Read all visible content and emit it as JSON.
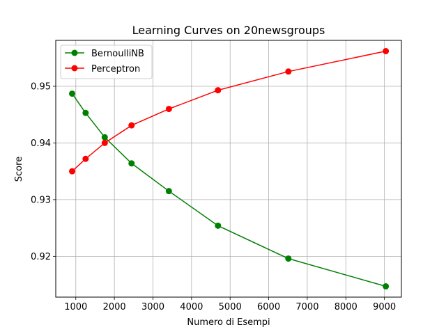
{
  "chart_data": {
    "type": "line",
    "title": "Learning Curves on 20newsgroups",
    "xlabel": "Numero di Esempi",
    "ylabel": "Score",
    "xlim": [
      480,
      9440
    ],
    "ylim": [
      0.9128,
      0.9581
    ],
    "xticks": [
      1000,
      2000,
      3000,
      4000,
      5000,
      6000,
      7000,
      8000,
      9000
    ],
    "xtick_labels": [
      "1000",
      "2000",
      "3000",
      "4000",
      "5000",
      "6000",
      "7000",
      "8000",
      "9000"
    ],
    "yticks": [
      0.92,
      0.93,
      0.94,
      0.95
    ],
    "ytick_labels": [
      "0.92",
      "0.93",
      "0.94",
      "0.95"
    ],
    "grid": true,
    "legend_position": "upper-left",
    "series": [
      {
        "name": "BernoulliNB",
        "color": "#008000",
        "x": [
          905,
          1254,
          1750,
          2445,
          3413,
          4685,
          6510,
          9036
        ],
        "y": [
          0.9487,
          0.9453,
          0.941,
          0.9364,
          0.9315,
          0.9254,
          0.9196,
          0.9147
        ]
      },
      {
        "name": "Perceptron",
        "color": "#ff0000",
        "x": [
          905,
          1254,
          1750,
          2445,
          3413,
          4685,
          6510,
          9036
        ],
        "y": [
          0.935,
          0.9372,
          0.94,
          0.9431,
          0.946,
          0.9493,
          0.9526,
          0.9562
        ]
      }
    ]
  }
}
